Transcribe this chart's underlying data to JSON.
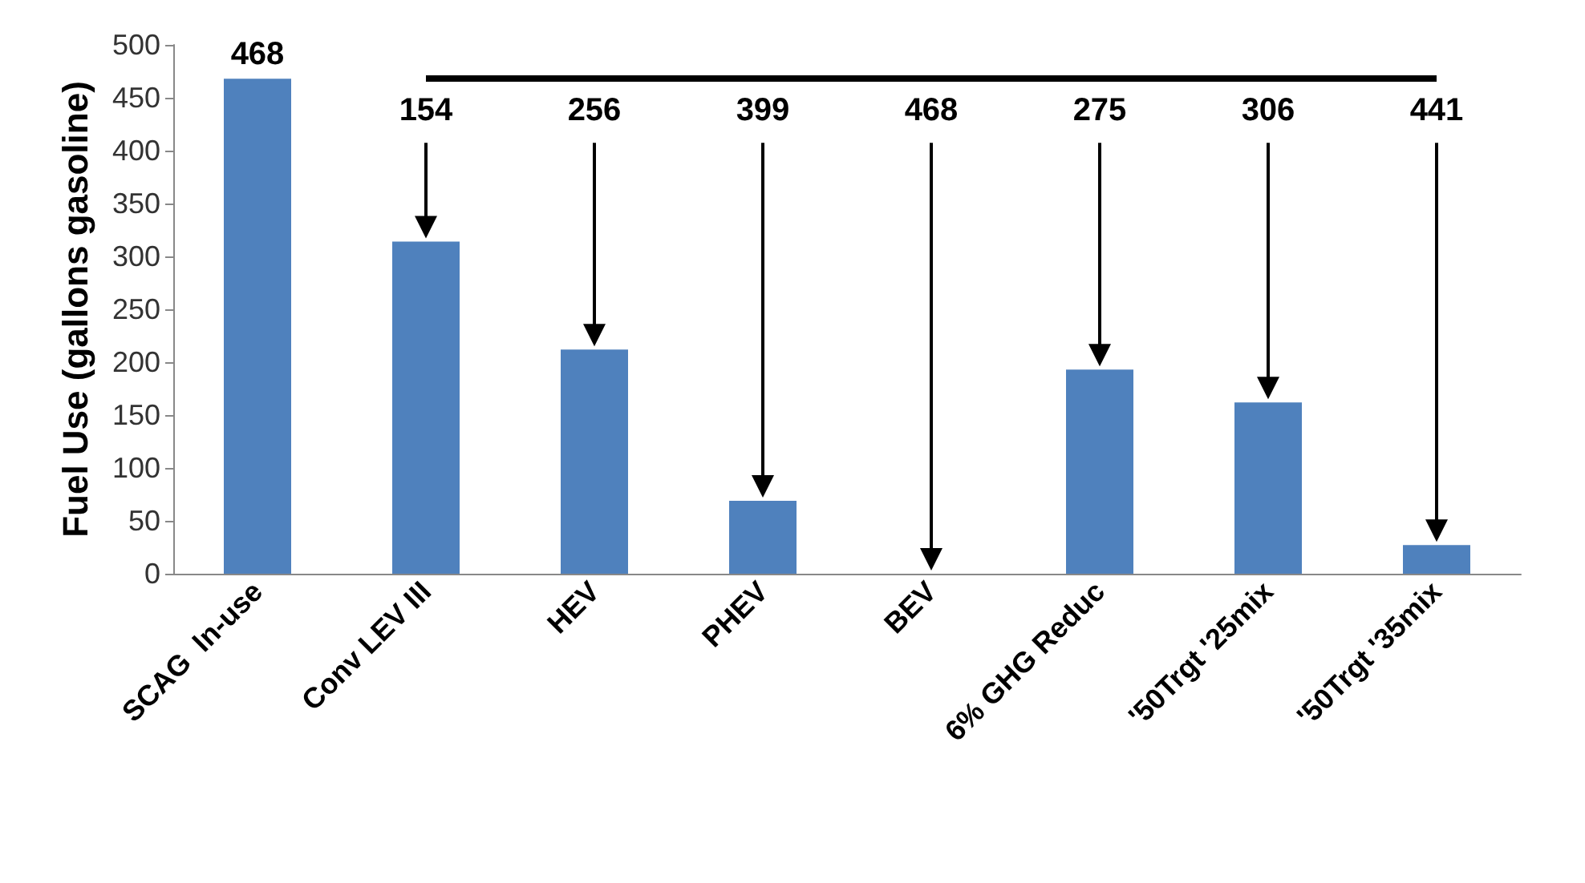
{
  "chart_data": {
    "type": "bar",
    "ylabel": "Fuel Use (gallons gasoline)",
    "categories": [
      "SCAG  In-use",
      "Conv LEV III",
      "HEV",
      "PHEV",
      "BEV",
      "6% GHG Reduc",
      "'50Trgt '25mix",
      "'50Trgt '35mix"
    ],
    "values": [
      468,
      314,
      212,
      69,
      0,
      193,
      162,
      27
    ],
    "value_labels": [
      "468",
      null,
      null,
      null,
      null,
      null,
      null,
      null
    ],
    "color": "#4f81bd",
    "ylim": [
      0,
      500
    ],
    "yticks": [
      0,
      50,
      100,
      150,
      200,
      250,
      300,
      350,
      400,
      450,
      500
    ],
    "ref_lines": [
      {
        "axis": "y",
        "value": 468,
        "color": "#000000"
      }
    ],
    "annotations": [
      "154",
      "256",
      "399",
      "468",
      "275",
      "306",
      "441"
    ],
    "grid": false
  }
}
